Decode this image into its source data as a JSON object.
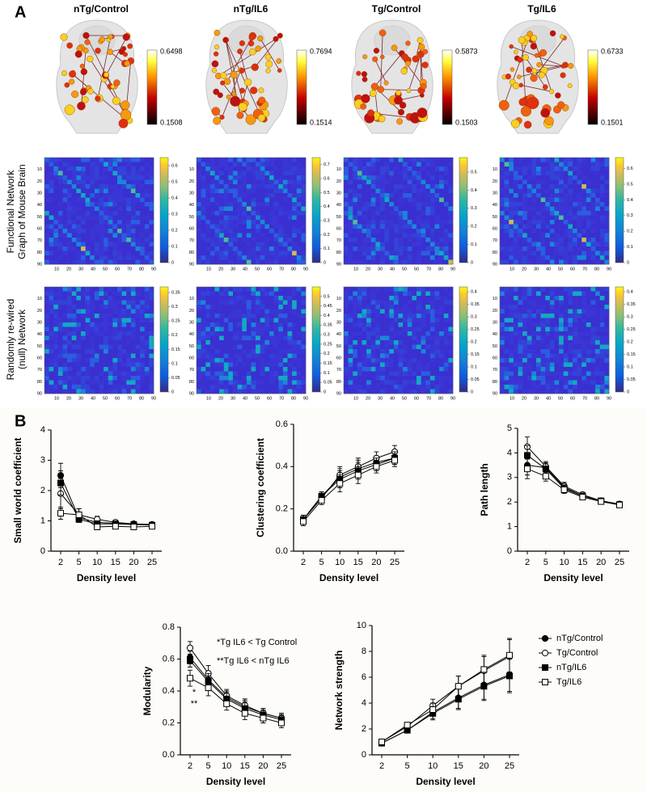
{
  "panel_a": {
    "label": "A",
    "columns": [
      "nTg/Control",
      "nTg/IL6",
      "Tg/Control",
      "Tg/IL6"
    ],
    "brain_colorbars": [
      {
        "max": 0.6498,
        "min": 0.1508
      },
      {
        "max": 0.7694,
        "min": 0.1514
      },
      {
        "max": 0.5873,
        "min": 0.1503
      },
      {
        "max": 0.6733,
        "min": 0.1501
      }
    ],
    "row_labels": [
      [
        "Functional Network",
        "Graph of Mouse Brain"
      ],
      [
        "Randomly re-wired",
        "(null) Network"
      ]
    ],
    "matrix_lim": [
      0,
      90
    ],
    "matrix_ticks": [
      10,
      20,
      30,
      40,
      50,
      60,
      70,
      80,
      90
    ],
    "matrices": [
      [
        {
          "cbar_lim": [
            0,
            0.65
          ],
          "cbar_ticks": [
            0,
            0.1,
            0.2,
            0.3,
            0.4,
            0.5,
            0.6
          ]
        },
        {
          "cbar_lim": [
            0,
            0.75
          ],
          "cbar_ticks": [
            0,
            0.1,
            0.2,
            0.3,
            0.4,
            0.5,
            0.6,
            0.7
          ]
        },
        {
          "cbar_lim": [
            0,
            0.58
          ],
          "cbar_ticks": [
            0,
            0.1,
            0.2,
            0.3,
            0.4,
            0.5
          ]
        },
        {
          "cbar_lim": [
            0,
            0.67
          ],
          "cbar_ticks": [
            0,
            0.1,
            0.2,
            0.3,
            0.4,
            0.5,
            0.6
          ]
        }
      ],
      [
        {
          "cbar_lim": [
            0,
            0.37
          ],
          "cbar_ticks": [
            0,
            0.05,
            0.1,
            0.15,
            0.2,
            0.25,
            0.3,
            0.35
          ]
        },
        {
          "cbar_lim": [
            0,
            0.55
          ],
          "cbar_ticks": [
            0,
            0.05,
            0.1,
            0.15,
            0.2,
            0.25,
            0.3,
            0.35,
            0.4,
            0.45,
            0.5
          ]
        },
        {
          "cbar_lim": [
            0,
            0.42
          ],
          "cbar_ticks": [
            0,
            0.05,
            0.1,
            0.15,
            0.2,
            0.25,
            0.3,
            0.35,
            0.4
          ]
        },
        {
          "cbar_lim": [
            0,
            0.42
          ],
          "cbar_ticks": [
            0,
            0.05,
            0.1,
            0.15,
            0.2,
            0.25,
            0.3,
            0.35,
            0.4
          ]
        }
      ]
    ]
  },
  "panel_b_label": "B",
  "chart_data": [
    {
      "type": "line",
      "ylabel": "Small world coefficient",
      "xlabel": "Density level",
      "categories": [
        2,
        5,
        10,
        15,
        20,
        25
      ],
      "ylim": [
        0,
        4
      ],
      "yticks": [
        0,
        1,
        2,
        3,
        4
      ],
      "series": [
        {
          "name": "nTg/Control",
          "color": "#000000",
          "marker": "circle",
          "fill": "#000000",
          "values": [
            2.5,
            1.1,
            0.95,
            0.92,
            0.9,
            0.88
          ],
          "errors": [
            0.4,
            0.1,
            0.1,
            0.08,
            0.06,
            0.06
          ]
        },
        {
          "name": "Tg/Control",
          "color": "#000000",
          "marker": "circle",
          "fill": "#ffffff",
          "values": [
            1.9,
            1.2,
            1.05,
            0.95,
            0.9,
            0.88
          ],
          "errors": [
            0.5,
            0.2,
            0.1,
            0.08,
            0.06,
            0.06
          ]
        },
        {
          "name": "nTg/IL6",
          "color": "#000000",
          "marker": "square",
          "fill": "#000000",
          "values": [
            2.25,
            1.05,
            0.9,
            0.9,
            0.88,
            0.86
          ],
          "errors": [
            0.4,
            0.1,
            0.1,
            0.08,
            0.06,
            0.06
          ]
        },
        {
          "name": "Tg/IL6",
          "color": "#000000",
          "marker": "square",
          "fill": "#ffffff",
          "values": [
            1.25,
            1.2,
            0.8,
            0.82,
            0.8,
            0.82
          ],
          "errors": [
            0.2,
            0.2,
            0.08,
            0.08,
            0.06,
            0.06
          ]
        }
      ]
    },
    {
      "type": "line",
      "ylabel": "Clustering coefficient",
      "xlabel": "Density level",
      "categories": [
        2,
        5,
        10,
        15,
        20,
        25
      ],
      "ylim": [
        0,
        0.6
      ],
      "yticks": [
        {
          "value": 0,
          "label": "0.0"
        },
        0.2,
        0.4,
        0.6
      ],
      "series": [
        {
          "name": "nTg/Control",
          "color": "#000000",
          "marker": "circle",
          "fill": "#000000",
          "values": [
            0.15,
            0.26,
            0.35,
            0.39,
            0.42,
            0.44
          ],
          "errors": [
            0.02,
            0.02,
            0.04,
            0.04,
            0.03,
            0.03
          ]
        },
        {
          "name": "Tg/Control",
          "color": "#000000",
          "marker": "circle",
          "fill": "#ffffff",
          "values": [
            0.15,
            0.25,
            0.36,
            0.4,
            0.44,
            0.47
          ],
          "errors": [
            0.02,
            0.02,
            0.04,
            0.04,
            0.03,
            0.03
          ]
        },
        {
          "name": "nTg/IL6",
          "color": "#000000",
          "marker": "square",
          "fill": "#000000",
          "values": [
            0.15,
            0.26,
            0.34,
            0.38,
            0.41,
            0.44
          ],
          "errors": [
            0.02,
            0.02,
            0.04,
            0.04,
            0.03,
            0.03
          ]
        },
        {
          "name": "Tg/IL6",
          "color": "#000000",
          "marker": "square",
          "fill": "#ffffff",
          "values": [
            0.14,
            0.24,
            0.32,
            0.36,
            0.4,
            0.43
          ],
          "errors": [
            0.02,
            0.02,
            0.04,
            0.04,
            0.03,
            0.03
          ]
        }
      ]
    },
    {
      "type": "line",
      "ylabel": "Path length",
      "xlabel": "Density level",
      "categories": [
        2,
        5,
        10,
        15,
        20,
        25
      ],
      "ylim": [
        0,
        5
      ],
      "yticks": [
        0,
        1,
        2,
        3,
        4,
        5
      ],
      "series": [
        {
          "name": "nTg/Control",
          "color": "#000000",
          "marker": "circle",
          "fill": "#000000",
          "values": [
            3.5,
            3.4,
            2.6,
            2.25,
            2.05,
            1.9
          ],
          "errors": [
            0.4,
            0.2,
            0.15,
            0.1,
            0.06,
            0.05
          ]
        },
        {
          "name": "Tg/Control",
          "color": "#000000",
          "marker": "circle",
          "fill": "#ffffff",
          "values": [
            4.25,
            3.45,
            2.65,
            2.3,
            2.05,
            1.92
          ],
          "errors": [
            0.4,
            0.2,
            0.15,
            0.1,
            0.06,
            0.05
          ]
        },
        {
          "name": "nTg/IL6",
          "color": "#000000",
          "marker": "square",
          "fill": "#000000",
          "values": [
            3.9,
            3.35,
            2.55,
            2.25,
            2.05,
            1.9
          ],
          "errors": [
            0.4,
            0.2,
            0.15,
            0.1,
            0.06,
            0.05
          ]
        },
        {
          "name": "Tg/IL6",
          "color": "#000000",
          "marker": "square",
          "fill": "#ffffff",
          "values": [
            3.35,
            3.05,
            2.5,
            2.2,
            2.02,
            1.88
          ],
          "errors": [
            0.4,
            0.2,
            0.15,
            0.1,
            0.06,
            0.05
          ]
        }
      ]
    },
    {
      "type": "line",
      "ylabel": "Modularity",
      "xlabel": "Density level",
      "categories": [
        2,
        5,
        10,
        15,
        20,
        25
      ],
      "ylim": [
        0,
        0.8
      ],
      "yticks": [
        {
          "value": 0,
          "label": "0.0"
        },
        0.2,
        0.4,
        0.6,
        0.8
      ],
      "annotations": [
        "*Tg IL6 < Tg Control",
        "**Tg IL6 < nTg IL6",
        "*",
        "**"
      ],
      "series": [
        {
          "name": "nTg/Control",
          "color": "#000000",
          "marker": "circle",
          "fill": "#000000",
          "values": [
            0.61,
            0.47,
            0.36,
            0.3,
            0.26,
            0.23
          ],
          "errors": [
            0.04,
            0.05,
            0.04,
            0.04,
            0.03,
            0.03
          ]
        },
        {
          "name": "Tg/Control",
          "color": "#000000",
          "marker": "circle",
          "fill": "#ffffff",
          "values": [
            0.67,
            0.51,
            0.37,
            0.31,
            0.26,
            0.23
          ],
          "errors": [
            0.04,
            0.05,
            0.04,
            0.04,
            0.03,
            0.03
          ]
        },
        {
          "name": "nTg/IL6",
          "color": "#000000",
          "marker": "square",
          "fill": "#000000",
          "values": [
            0.59,
            0.46,
            0.35,
            0.29,
            0.25,
            0.22
          ],
          "errors": [
            0.04,
            0.05,
            0.04,
            0.04,
            0.03,
            0.03
          ]
        },
        {
          "name": "Tg/IL6",
          "color": "#000000",
          "marker": "square",
          "fill": "#ffffff",
          "values": [
            0.48,
            0.42,
            0.32,
            0.26,
            0.23,
            0.2
          ],
          "errors": [
            0.05,
            0.05,
            0.04,
            0.04,
            0.03,
            0.03
          ]
        }
      ]
    },
    {
      "type": "line",
      "ylabel": "Network strength",
      "xlabel": "Density level",
      "categories": [
        2,
        5,
        10,
        15,
        20,
        25
      ],
      "ylim": [
        0,
        10
      ],
      "yticks": [
        0,
        2,
        4,
        6,
        8,
        10
      ],
      "legend": "right",
      "series": [
        {
          "name": "nTg/Control",
          "color": "#000000",
          "marker": "circle",
          "fill": "#000000",
          "values": [
            0.9,
            1.9,
            3.3,
            4.4,
            5.4,
            6.2
          ],
          "errors": [
            0.1,
            0.2,
            0.5,
            0.8,
            1.1,
            1.3
          ]
        },
        {
          "name": "Tg/Control",
          "color": "#000000",
          "marker": "circle",
          "fill": "#ffffff",
          "values": [
            1.0,
            2.2,
            3.8,
            5.3,
            6.5,
            7.6
          ],
          "errors": [
            0.1,
            0.2,
            0.5,
            0.8,
            1.1,
            1.3
          ]
        },
        {
          "name": "nTg/IL6",
          "color": "#000000",
          "marker": "square",
          "fill": "#000000",
          "values": [
            0.9,
            1.9,
            3.2,
            4.3,
            5.3,
            6.1
          ],
          "errors": [
            0.1,
            0.2,
            0.5,
            0.8,
            1.1,
            1.3
          ]
        },
        {
          "name": "Tg/IL6",
          "color": "#000000",
          "marker": "square",
          "fill": "#ffffff",
          "values": [
            1.0,
            2.3,
            3.5,
            5.3,
            6.6,
            7.7
          ],
          "errors": [
            0.1,
            0.2,
            0.5,
            0.8,
            1.1,
            1.3
          ]
        }
      ]
    }
  ]
}
